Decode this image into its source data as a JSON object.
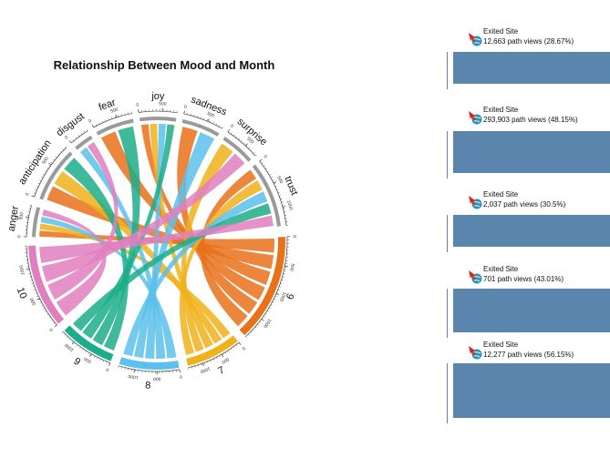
{
  "chart_data": {
    "type": "chord",
    "title": "Relationship Between Mood and Month",
    "sectors": [
      {
        "name": "anger",
        "color": "#9a9a9a"
      },
      {
        "name": "anticipation",
        "color": "#9a9a9a"
      },
      {
        "name": "disgust",
        "color": "#9a9a9a"
      },
      {
        "name": "fear",
        "color": "#9a9a9a"
      },
      {
        "name": "joy",
        "color": "#9a9a9a"
      },
      {
        "name": "sadness",
        "color": "#9a9a9a"
      },
      {
        "name": "surprise",
        "color": "#9a9a9a"
      },
      {
        "name": "trust",
        "color": "#9a9a9a"
      },
      {
        "name": "6",
        "color": "#e8711a"
      },
      {
        "name": "7",
        "color": "#f0b21a"
      },
      {
        "name": "8",
        "color": "#5bc0eb"
      },
      {
        "name": "9",
        "color": "#1cae8a"
      },
      {
        "name": "10",
        "color": "#e07fbf"
      }
    ],
    "ticks": {
      "anger": [
        "0",
        "500"
      ],
      "anticipation": [
        "0",
        "500"
      ],
      "disgust": [
        "0"
      ],
      "fear": [
        "0",
        "500"
      ],
      "joy": [
        "0",
        "500"
      ],
      "sadness": [
        "0",
        "500"
      ],
      "surprise": [
        "0",
        "500"
      ],
      "trust": [
        "0",
        "500",
        "1000"
      ],
      "6": [
        "0",
        "500",
        "1000",
        "1500"
      ],
      "7": [
        "0",
        "500",
        "1000"
      ],
      "8": [
        "0",
        "500",
        "1000"
      ],
      "9": [
        "0",
        "500",
        "1000"
      ],
      "10": [
        "0",
        "500",
        "1000"
      ]
    },
    "links": [
      {
        "from": "6",
        "to": "anger"
      },
      {
        "from": "6",
        "to": "anticipation"
      },
      {
        "from": "6",
        "to": "fear"
      },
      {
        "from": "6",
        "to": "joy"
      },
      {
        "from": "6",
        "to": "sadness"
      },
      {
        "from": "6",
        "to": "trust"
      },
      {
        "from": "7",
        "to": "anger"
      },
      {
        "from": "7",
        "to": "anticipation"
      },
      {
        "from": "7",
        "to": "joy"
      },
      {
        "from": "7",
        "to": "surprise"
      },
      {
        "from": "7",
        "to": "trust"
      },
      {
        "from": "8",
        "to": "anger"
      },
      {
        "from": "8",
        "to": "disgust"
      },
      {
        "from": "8",
        "to": "joy"
      },
      {
        "from": "8",
        "to": "sadness"
      },
      {
        "from": "8",
        "to": "trust"
      },
      {
        "from": "9",
        "to": "anticipation"
      },
      {
        "from": "9",
        "to": "fear"
      },
      {
        "from": "9",
        "to": "joy"
      },
      {
        "from": "9",
        "to": "trust"
      },
      {
        "from": "10",
        "to": "anger"
      },
      {
        "from": "10",
        "to": "disgust"
      },
      {
        "from": "10",
        "to": "surprise"
      },
      {
        "from": "10",
        "to": "trust"
      }
    ]
  },
  "exits": [
    {
      "title": "Exited Site",
      "stat": "12,663 path views (28.67%)",
      "icon": "exit-globe-icon"
    },
    {
      "title": "Exited Site",
      "stat": "293,903 path views (48.15%)",
      "icon": "exit-globe-icon"
    },
    {
      "title": "Exited Site",
      "stat": "2,037 path views (30.5%)",
      "icon": "exit-globe-icon"
    },
    {
      "title": "Exited Site",
      "stat": "701 path views (43.01%)",
      "icon": "exit-globe-icon"
    },
    {
      "title": "Exited Site",
      "stat": "12,277 path views (56.15%)",
      "icon": "exit-globe-icon"
    }
  ],
  "colors": {
    "bar": "#5a86ae",
    "arrow": "#d9261c",
    "globe": "#2a8fc7"
  }
}
